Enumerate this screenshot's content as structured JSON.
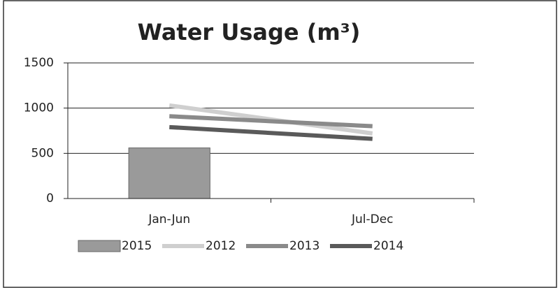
{
  "chart_data": {
    "type": "combo",
    "title": "Water Usage (m³)",
    "categories": [
      "Jan-Jun",
      "Jul-Dec"
    ],
    "series": [
      {
        "name": "2015",
        "type": "bar",
        "color": "#9a9a9a",
        "values": [
          560,
          null
        ]
      },
      {
        "name": "2012",
        "type": "line",
        "color": "#cfcfcf",
        "values": [
          1030,
          720
        ]
      },
      {
        "name": "2013",
        "type": "line",
        "color": "#8a8a8a",
        "values": [
          910,
          800
        ]
      },
      {
        "name": "2014",
        "type": "line",
        "color": "#5a5a5a",
        "values": [
          790,
          660
        ]
      }
    ],
    "ylim": [
      0,
      1500
    ],
    "yticks": [
      0,
      500,
      1000,
      1500
    ],
    "grid": true
  }
}
